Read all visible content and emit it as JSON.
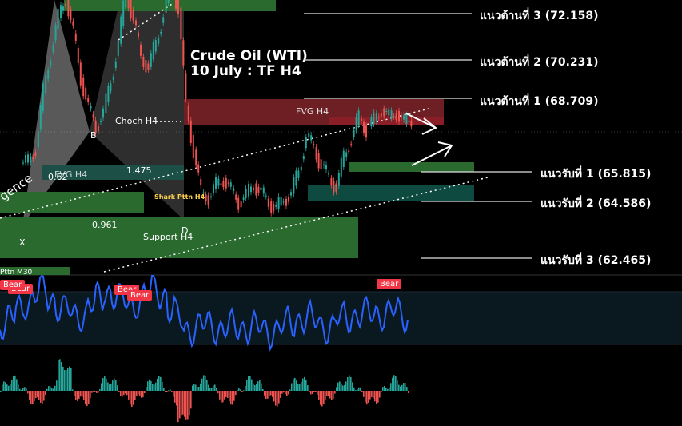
{
  "chart_data": {
    "type": "line",
    "title": "Crude Oil (WTI)",
    "subtitle": "10 July : TF H4",
    "levels": [
      {
        "label": "แนวต้านที่ 3 (72.158)",
        "value": 72.158,
        "kind": "resistance"
      },
      {
        "label": "แนวต้านที่ 2 (70.231)",
        "value": 70.231,
        "kind": "resistance"
      },
      {
        "label": "แนวต้านที่ 1 (68.709)",
        "value": 68.709,
        "kind": "resistance"
      },
      {
        "label": "แนวรับที่ 1   (65.815)",
        "value": 65.815,
        "kind": "support"
      },
      {
        "label": "แนวรับที่ 2   (64.586)",
        "value": 64.586,
        "kind": "support"
      },
      {
        "label": "แนวรับที่ 3 (62.465)",
        "value": 62.465,
        "kind": "support"
      }
    ],
    "zones": [
      {
        "label": "FVG H4",
        "color": "#6e1f24"
      },
      {
        "label": "FVG H4",
        "color": "#0f4a40"
      },
      {
        "label": "Support H4",
        "color": "#2a6a2e"
      }
    ],
    "annotations": [
      "Choch H4",
      "B",
      "X",
      "D",
      "0.62",
      "1.475",
      "0.961",
      "Shark Pttn H4",
      "gence",
      "Pttn M30"
    ],
    "price_series": [
      66.2,
      66.8,
      68.9,
      70.5,
      71.8,
      72.6,
      71.2,
      69.5,
      68.3,
      67.6,
      68.1,
      69.4,
      70.8,
      72.9,
      71.7,
      70.3,
      69.9,
      70.8,
      72.0,
      73.1,
      72.2,
      68.4,
      66.7,
      65.0,
      64.9,
      65.3,
      65.6,
      65.1,
      64.7,
      64.9,
      65.4,
      65.0,
      64.7,
      64.4,
      64.8,
      65.0,
      65.9,
      67.2,
      66.8,
      66.1,
      65.6,
      65.3,
      66.4,
      67.2,
      67.9,
      67.5,
      67.8,
      68.3,
      67.9,
      68.2,
      67.7,
      67.9
    ],
    "oscillator_badges": [
      "Bear",
      "Bear",
      "Bear",
      "Bear",
      "Bear"
    ]
  },
  "colors": {
    "background": "#000000",
    "candle_up": "#26a69a",
    "candle_down": "#ef5350",
    "oscillator_line": "#2962ff",
    "badge": "#f23645"
  }
}
